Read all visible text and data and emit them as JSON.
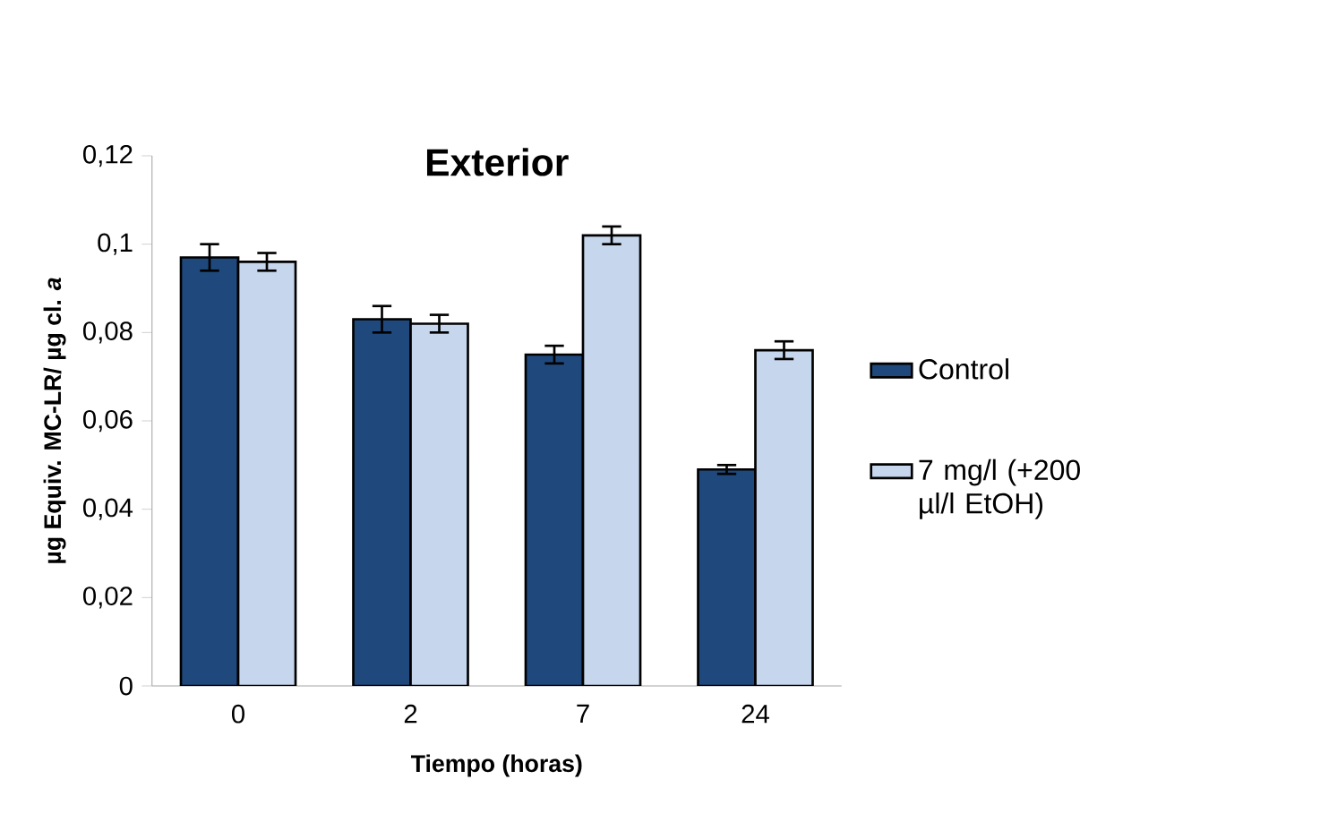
{
  "chart_data": {
    "type": "bar",
    "title": "Exterior",
    "xlabel": "Tiempo (horas)",
    "ylabel": "µg Equiv. MC-LR/ µg cl. *a*",
    "categories": [
      "0",
      "2",
      "7",
      "24"
    ],
    "series": [
      {
        "name": "Control",
        "color": "#1f497d",
        "values": [
          0.097,
          0.083,
          0.075,
          0.049
        ],
        "errors": [
          0.003,
          0.003,
          0.002,
          0.001
        ]
      },
      {
        "name": "7 mg/l (+200 µl/l EtOH)",
        "color": "#c6d6ec",
        "values": [
          0.096,
          0.082,
          0.102,
          0.076
        ],
        "errors": [
          0.002,
          0.002,
          0.002,
          0.002
        ]
      }
    ],
    "ylim": [
      0,
      0.12
    ],
    "yticks": [
      0,
      {
        "value": 0.02,
        "label": "0,02"
      },
      {
        "value": 0.04,
        "label": "0,04"
      },
      {
        "value": 0.06,
        "label": "0,06"
      },
      {
        "value": 0.08,
        "label": "0,08"
      },
      {
        "value": 0.1,
        "label": "0,1"
      },
      {
        "value": 0.12,
        "label": "0,12"
      }
    ],
    "grid": false,
    "legend": "right"
  }
}
